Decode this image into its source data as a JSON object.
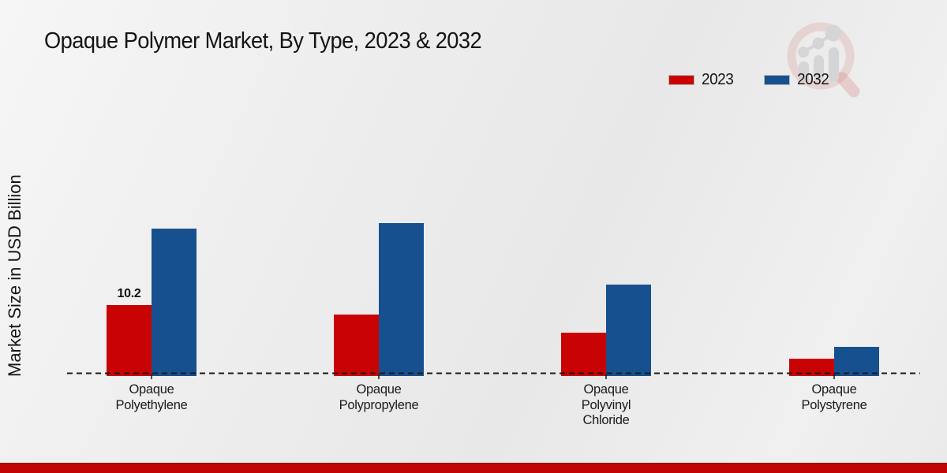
{
  "page": {
    "title": "Opaque Polymer Market, By Type, 2023 & 2032",
    "watermark_icon": "magnifier-growth-chart-logo"
  },
  "legend": {
    "items": [
      {
        "label": "2023",
        "color": "#c90304"
      },
      {
        "label": "2032",
        "color": "#17508f"
      }
    ]
  },
  "chart_data": {
    "type": "bar",
    "title": "Opaque Polymer Market, By Type, 2023 & 2032",
    "ylabel": "Market Size in USD Billion",
    "xlabel": "",
    "unit": "USD Billion",
    "categories": [
      "Opaque\nPolyethylene",
      "Opaque\nPolypropylene",
      "Opaque\nPolyvinyl\nChloride",
      "Opaque\nPolystyrene"
    ],
    "series": [
      {
        "name": "2023",
        "color": "#c90304",
        "values": [
          10.2,
          8.8,
          6.1,
          2.2
        ],
        "data_labels": [
          "10.2",
          "",
          "",
          ""
        ]
      },
      {
        "name": "2032",
        "color": "#17508f",
        "values": [
          21.6,
          22.4,
          13.3,
          3.9
        ],
        "data_labels": [
          "",
          "",
          "",
          ""
        ]
      }
    ],
    "axis": {
      "baseline_style": "dashed",
      "gridlines": false,
      "y_ticks_visible": false
    },
    "legend_position": "top-right"
  },
  "footer": {
    "bar_color": "#c00404"
  }
}
